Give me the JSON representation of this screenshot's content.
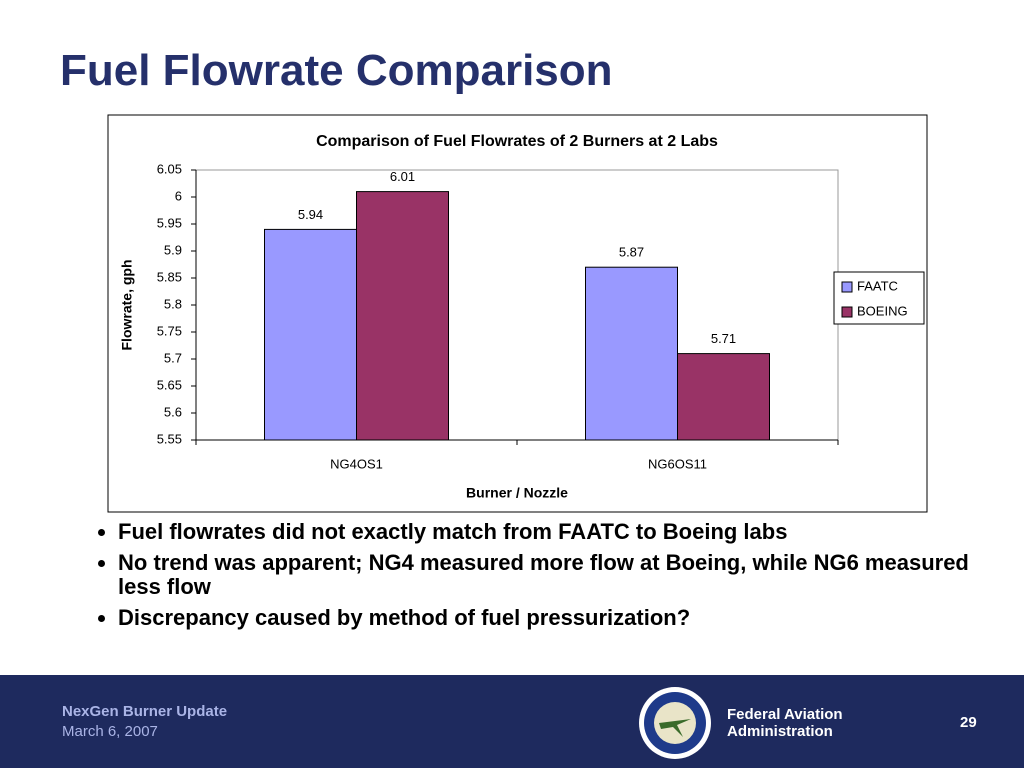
{
  "chart_data": {
    "type": "bar",
    "title": "Comparison of Fuel Flowrates of 2 Burners at 2 Labs",
    "x_label": "Burner / Nozzle",
    "y_label": "Flowrate, gph",
    "categories": [
      "NG4OS1",
      "NG6OS11"
    ],
    "series": [
      {
        "name": "FAATC",
        "color": "#9999ff",
        "values": [
          5.94,
          5.87
        ]
      },
      {
        "name": "BOEING",
        "color": "#993366",
        "values": [
          6.01,
          5.71
        ]
      }
    ],
    "ylim": [
      5.55,
      6.05
    ],
    "yticks": [
      5.55,
      5.6,
      5.65,
      5.7,
      5.75,
      5.8,
      5.85,
      5.9,
      5.95,
      6,
      6.05
    ],
    "grid": false,
    "legend": "right"
  },
  "slide": {
    "title": "Fuel Flowrate Comparison",
    "bullets": [
      "Fuel flowrates did not exactly match from FAATC to Boeing labs",
      "No trend was apparent; NG4 measured more flow at Boeing, while NG6 measured less flow",
      "Discrepancy caused by method of fuel pressurization?"
    ],
    "footer": {
      "presentation": "NexGen Burner Update",
      "date": "March 6, 2007",
      "agency": [
        "Federal Aviation",
        "Administration"
      ],
      "page": "29"
    }
  }
}
